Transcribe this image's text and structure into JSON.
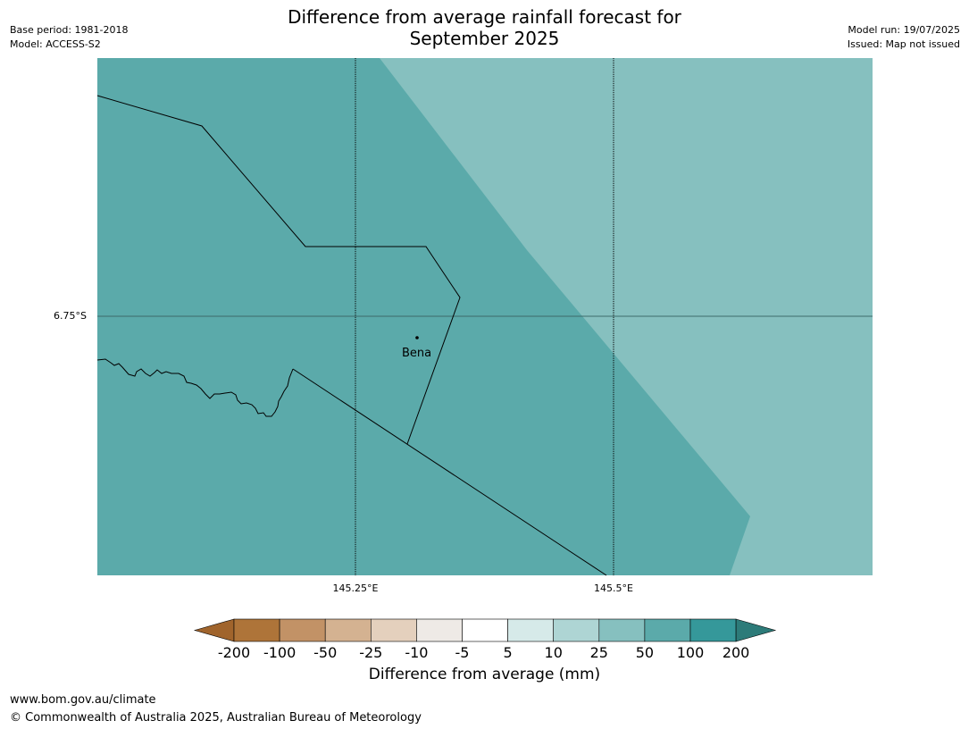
{
  "header": {
    "base_period": "Base period: 1981-2018",
    "model": "Model: ACCESS-S2",
    "title_line1": "Difference from average rainfall forecast for",
    "title_line2": "September 2025",
    "model_run": "Model run: 19/07/2025",
    "issued": "Issued: Map not issued"
  },
  "map": {
    "lat_label": "6.75°S",
    "lon_labels": [
      "145.25°E",
      "145.5°E"
    ],
    "place": "Bena",
    "colors": {
      "region_dark": "#5BAAAA",
      "region_light": "#86C0BF",
      "gridline": "#000000",
      "border": "#000000"
    },
    "forecast_classes": [
      "50 to 100",
      "25 to 50"
    ]
  },
  "colorbar": {
    "ticks": [
      "-200",
      "-100",
      "-50",
      "-25",
      "-10",
      "-5",
      "5",
      "10",
      "25",
      "50",
      "100",
      "200"
    ],
    "colors": [
      "#A0642C",
      "#AE7439",
      "#C29266",
      "#D4B291",
      "#E4D0BD",
      "#EEEAE6",
      "#FFFFFF",
      "#D6EAE9",
      "#AED5D4",
      "#86C0BF",
      "#5BAAAA",
      "#35989A",
      "#2D7B79"
    ],
    "label": "Difference from average (mm)"
  },
  "footer": {
    "url": "www.bom.gov.au/climate",
    "copyright": "© Commonwealth of Australia 2025, Australian Bureau of Meteorology"
  }
}
